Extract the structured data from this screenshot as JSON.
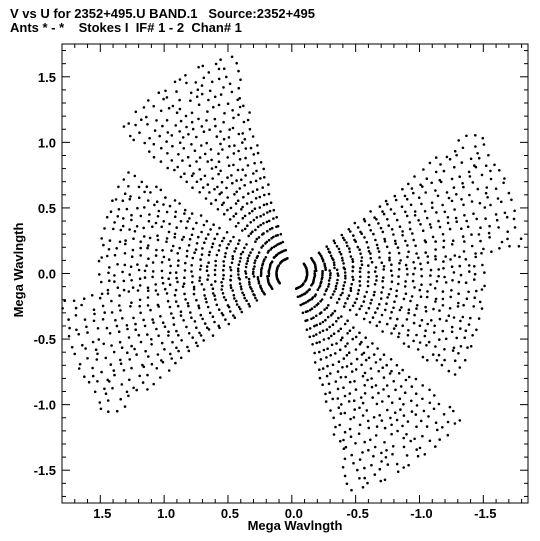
{
  "chart_data": {
    "type": "scatter",
    "title": "V vs U for 2352+495.U BAND.1   Source:2352+495",
    "subtitle": "Ants * - *    Stokes I  IF# 1 - 2  Chan# 1",
    "xlabel": "Mega Wavlngth",
    "ylabel": "Mega Wavlngth",
    "xlim": [
      1.8,
      -1.85
    ],
    "ylim": [
      -1.75,
      1.75
    ],
    "x_ticks": [
      1.5,
      1.0,
      0.5,
      0.0,
      -0.5,
      -1.0,
      -1.5
    ],
    "x_tick_labels": [
      "1.5",
      "1.0",
      "0.5",
      "0.0",
      "-0.5",
      "-1.0",
      "-1.5"
    ],
    "y_ticks": [
      1.5,
      1.0,
      0.5,
      0.0,
      -0.5,
      -1.0,
      -1.5
    ],
    "y_tick_labels": [
      "1.5",
      "1.0",
      "0.5",
      "0.0",
      "-0.5",
      "-1.0",
      "-1.5"
    ],
    "grid": false,
    "arc_groups": [
      {
        "center_angle_deg": 57,
        "half_width_deg": 17,
        "r_min": 0.12,
        "r_max": 1.72,
        "tracks": 26,
        "pts_per_track": 15
      },
      {
        "center_angle_deg": 158,
        "half_width_deg": 15,
        "r_min": 0.12,
        "r_max": 1.8,
        "tracks": 24,
        "pts_per_track": 15
      },
      {
        "center_angle_deg": 13,
        "half_width_deg": 18,
        "r_min": 0.12,
        "r_max": 1.5,
        "tracks": 24,
        "pts_per_track": 15
      }
    ]
  }
}
